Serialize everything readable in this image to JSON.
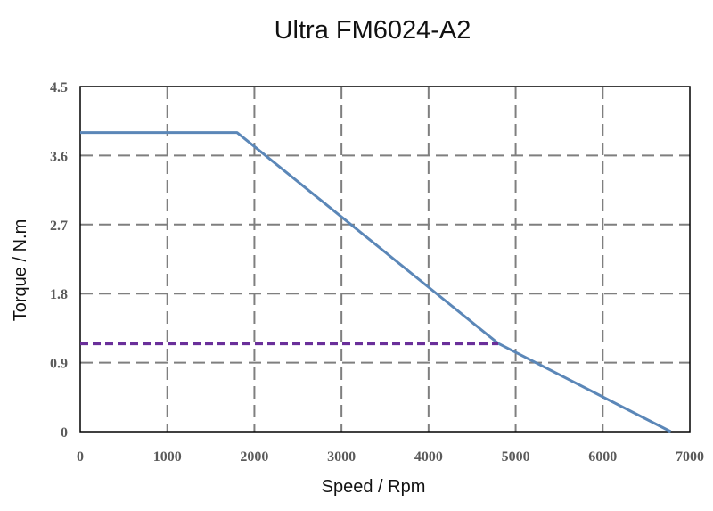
{
  "chart_data": {
    "type": "line",
    "title": "Ultra FM6024-A2",
    "xlabel": "Speed / Rpm",
    "ylabel": "Torque / N.m",
    "xlim": [
      0,
      7000
    ],
    "ylim": [
      0,
      4.5
    ],
    "x_ticks": [
      "0",
      "1000",
      "2000",
      "3000",
      "4000",
      "5000",
      "6000",
      "7000"
    ],
    "y_ticks": [
      "0",
      "0.9",
      "1.8",
      "2.7",
      "3.6",
      "4.5"
    ],
    "x_tick_values": [
      0,
      1000,
      2000,
      3000,
      4000,
      5000,
      6000,
      7000
    ],
    "y_tick_values": [
      0,
      0.9,
      1.8,
      2.7,
      3.6,
      4.5
    ],
    "grid": true,
    "series": [
      {
        "style": "solid",
        "color": "#5b87b8",
        "x": [
          0,
          1800,
          4800,
          6780
        ],
        "y": [
          3.9,
          3.9,
          1.15,
          0
        ]
      },
      {
        "style": "dashed",
        "color": "#6a2f9a",
        "x": [
          0,
          4800
        ],
        "y": [
          1.15,
          1.15
        ]
      }
    ]
  }
}
